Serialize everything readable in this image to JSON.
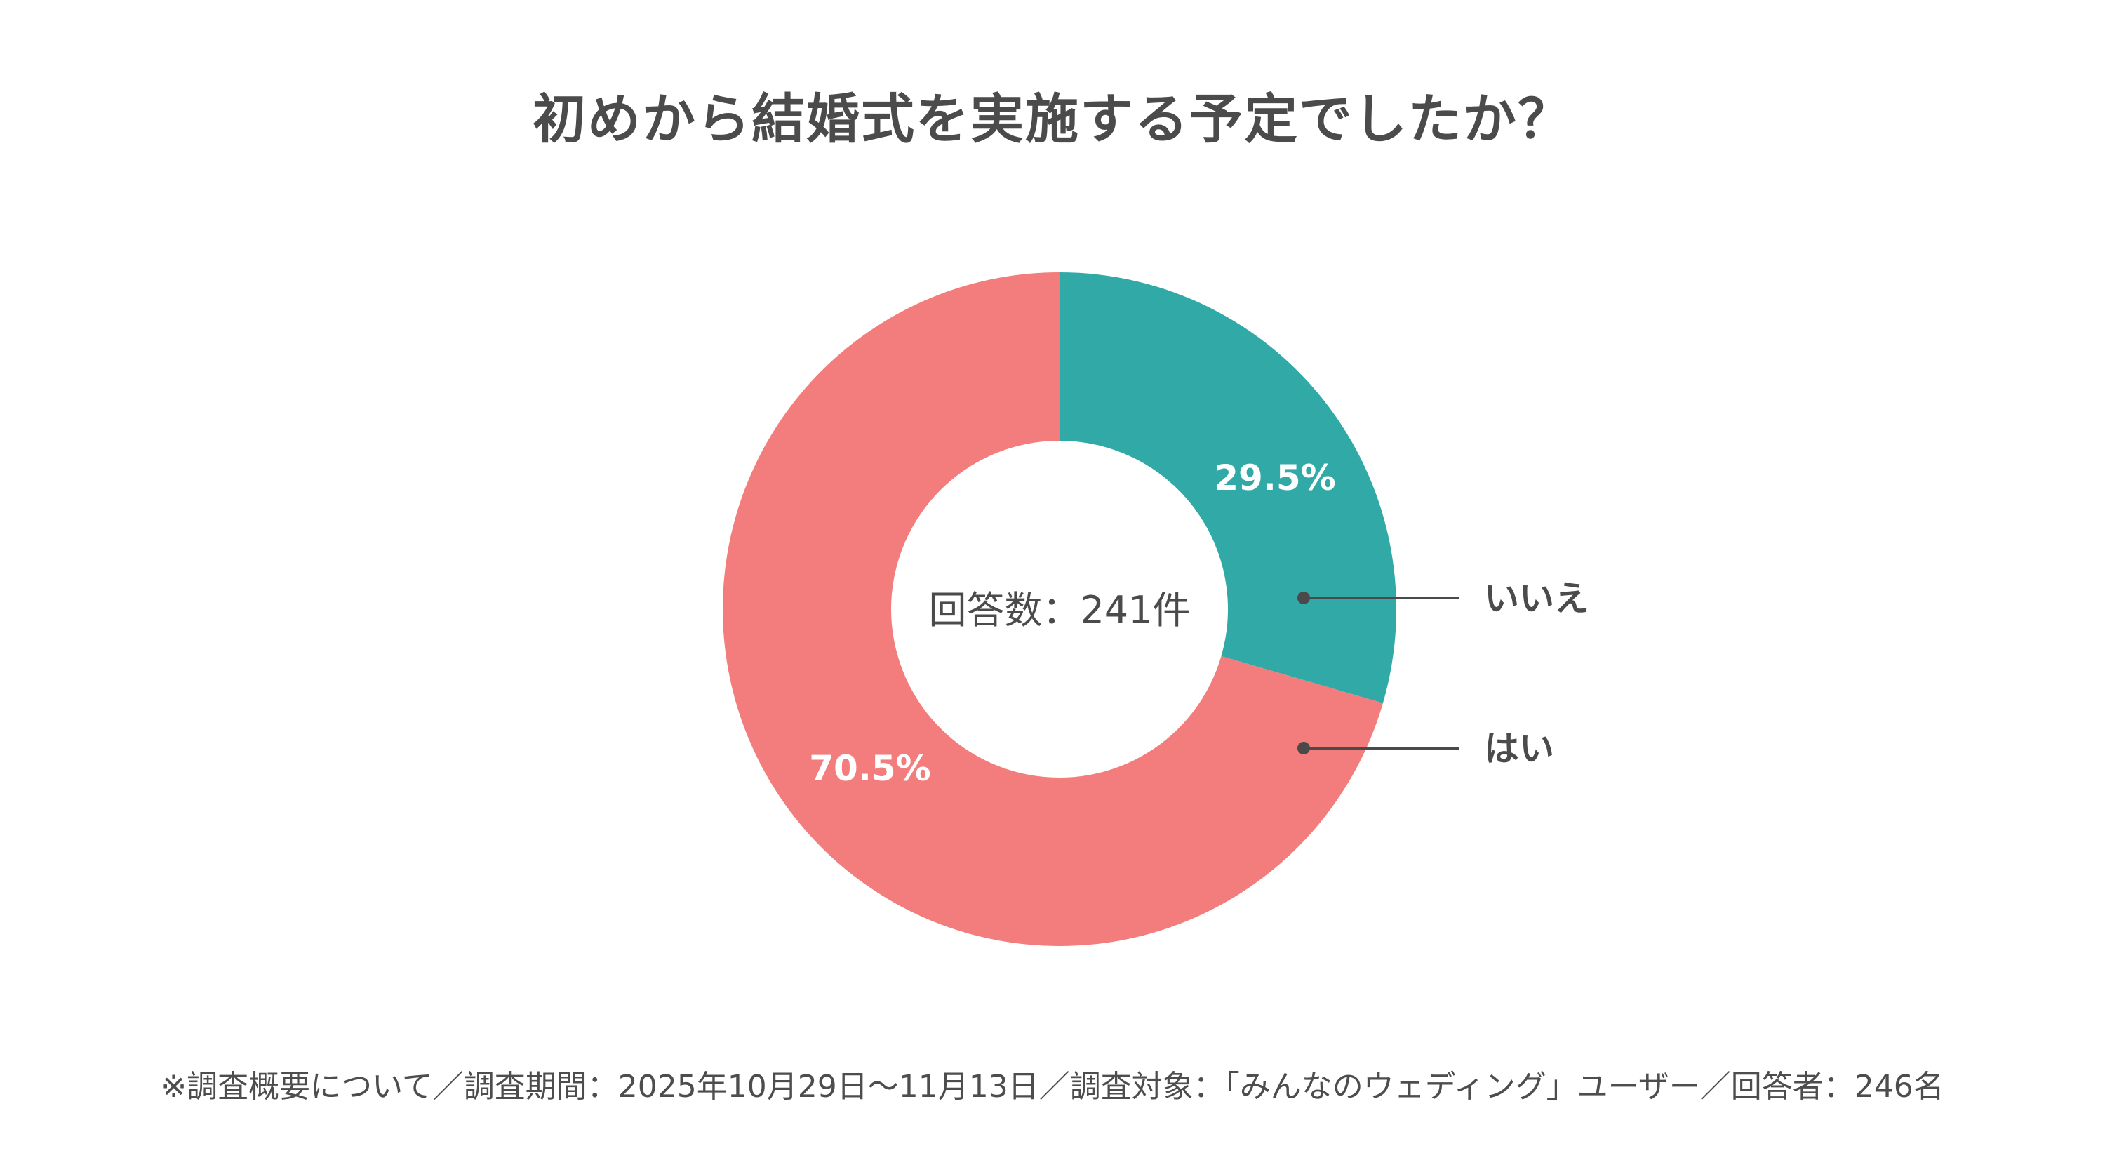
{
  "chart_data": {
    "type": "pie",
    "variant": "donut",
    "title": "初めから結婚式を実施する予定でしたか？",
    "center_label": "回答数：241件",
    "slices": [
      {
        "label": "いいえ",
        "value": 29.5,
        "value_label": "29.5%",
        "color": "#31aaa7"
      },
      {
        "label": "はい",
        "value": 70.5,
        "value_label": "70.5%",
        "color": "#f27d7c"
      }
    ],
    "start_angle": "12 o'clock",
    "direction": "clockwise",
    "legend": "right, leader lines"
  },
  "footnote": "※調査概要について／調査期間：2025年10月29日〜11月13日／調査対象：「みんなのウェディング」ユーザー／回答者：246名",
  "colors": {
    "leader_line": "#4a4a4a",
    "value_label_text": "#ffffff",
    "text": "#4b4b4b"
  }
}
